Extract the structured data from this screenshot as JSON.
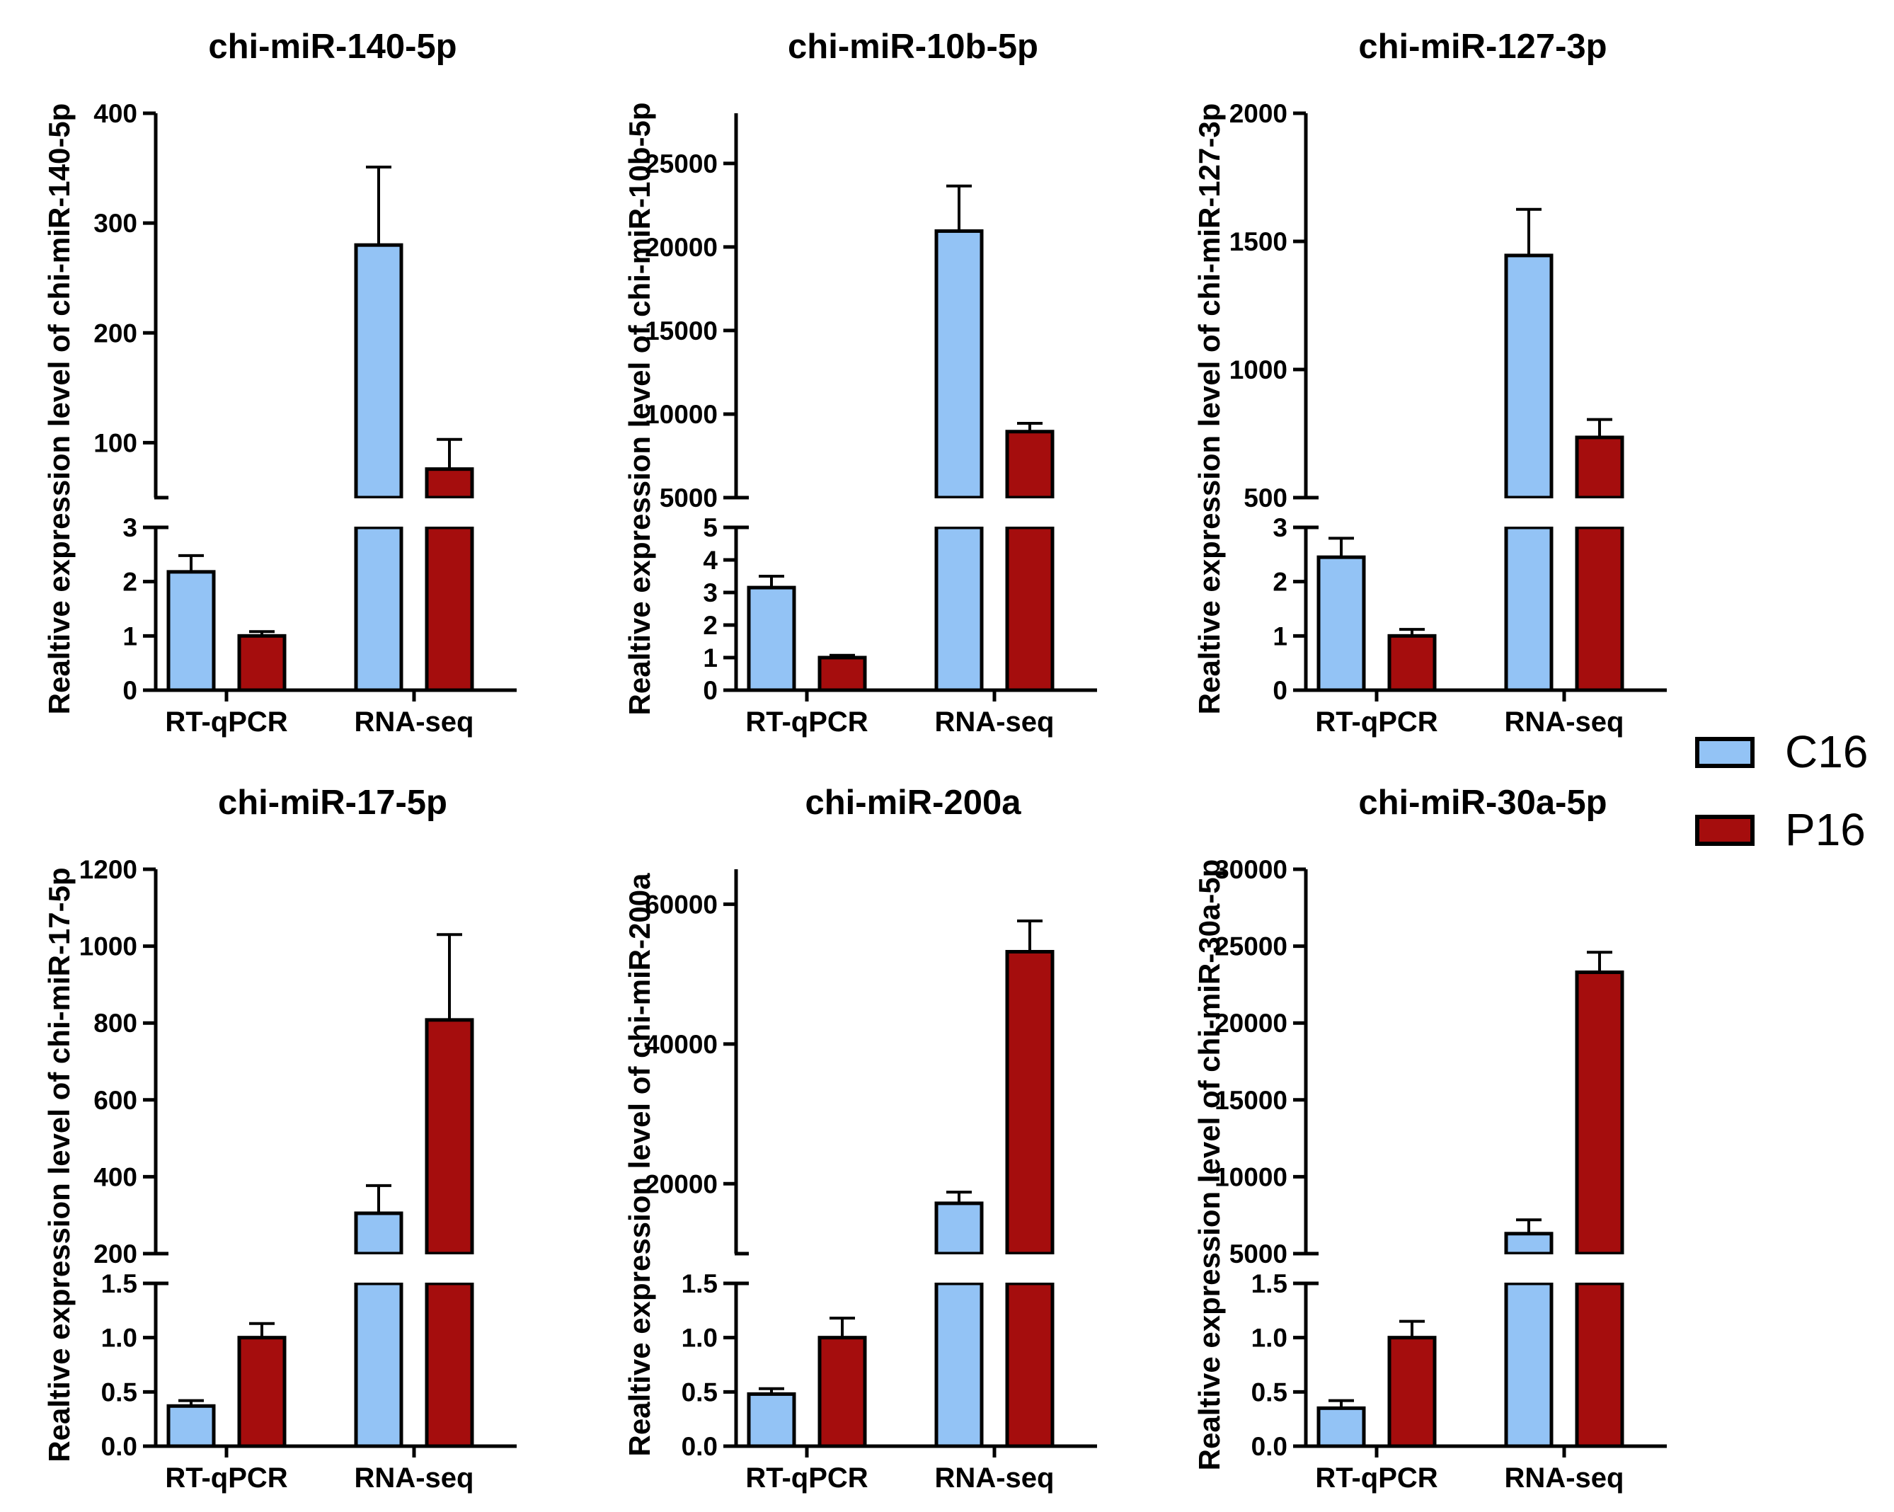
{
  "colors": {
    "c16": "#93c3f5",
    "p16": "#a50d0d",
    "stroke": "#000000"
  },
  "legend": [
    {
      "key": "c16",
      "label": "C16"
    },
    {
      "key": "p16",
      "label": "P16"
    }
  ],
  "chart_data": [
    {
      "type": "bar",
      "title": "chi-miR-140-5p",
      "ylabel": "Realtive expression level of chi-miR-140-5p",
      "categories": [
        "RT-qPCR",
        "RNA-seq"
      ],
      "series": [
        {
          "name": "C16",
          "values": [
            2.18,
            280
          ],
          "errors": [
            0.3,
            71
          ]
        },
        {
          "name": "P16",
          "values": [
            1.0,
            76
          ],
          "errors": [
            0.08,
            27
          ]
        }
      ],
      "lower_axis": {
        "range": [
          0,
          3
        ],
        "ticks": [
          0,
          1,
          2,
          3
        ]
      },
      "upper_axis": {
        "range": [
          50,
          400
        ],
        "ticks": [
          100,
          200,
          300,
          400
        ],
        "tick_labels": [
          "100",
          "200",
          "300",
          "400"
        ]
      }
    },
    {
      "type": "bar",
      "title": "chi-miR-10b-5p",
      "ylabel": "Realtive expression level of chi-miR-10b-5p",
      "categories": [
        "RT-qPCR",
        "RNA-seq"
      ],
      "series": [
        {
          "name": "C16",
          "values": [
            3.15,
            20950
          ],
          "errors": [
            0.35,
            2700
          ]
        },
        {
          "name": "P16",
          "values": [
            1.0,
            8950
          ],
          "errors": [
            0.07,
            500
          ]
        }
      ],
      "lower_axis": {
        "range": [
          0,
          5
        ],
        "ticks": [
          0,
          1,
          2,
          3,
          4,
          5
        ]
      },
      "upper_axis": {
        "range": [
          5000,
          28000
        ],
        "ticks": [
          5000,
          10000,
          15000,
          20000,
          25000
        ],
        "tick_labels": [
          "5000",
          "10000",
          "15000",
          "20000",
          "25000"
        ]
      }
    },
    {
      "type": "bar",
      "title": "chi-miR-127-3p",
      "ylabel": "Realtive expression level of chi-miR-127-3p",
      "categories": [
        "RT-qPCR",
        "RNA-seq"
      ],
      "series": [
        {
          "name": "C16",
          "values": [
            2.45,
            1445
          ],
          "errors": [
            0.35,
            180
          ]
        },
        {
          "name": "P16",
          "values": [
            1.0,
            735
          ],
          "errors": [
            0.12,
            70
          ]
        }
      ],
      "lower_axis": {
        "range": [
          0,
          3
        ],
        "ticks": [
          0,
          1,
          2,
          3
        ]
      },
      "upper_axis": {
        "range": [
          500,
          2000
        ],
        "ticks": [
          500,
          1000,
          1500,
          2000
        ],
        "tick_labels": [
          "500",
          "1000",
          "1500",
          "2000"
        ]
      }
    },
    {
      "type": "bar",
      "title": "chi-miR-17-5p",
      "ylabel": "Realtive expression level of chi-miR-17-5p",
      "categories": [
        "RT-qPCR",
        "RNA-seq"
      ],
      "series": [
        {
          "name": "C16",
          "values": [
            0.37,
            305
          ],
          "errors": [
            0.05,
            72
          ]
        },
        {
          "name": "P16",
          "values": [
            1.0,
            808
          ],
          "errors": [
            0.13,
            222
          ]
        }
      ],
      "lower_axis": {
        "range": [
          0,
          1.5
        ],
        "ticks": [
          0,
          0.5,
          1,
          1.5
        ],
        "tick_labels": [
          "0.0",
          "0.5",
          "1.0",
          "1.5"
        ]
      },
      "upper_axis": {
        "range": [
          200,
          1200
        ],
        "ticks": [
          200,
          400,
          600,
          800,
          1000,
          1200
        ],
        "tick_labels": [
          "200",
          "400",
          "600",
          "800",
          "1000",
          "1200"
        ]
      }
    },
    {
      "type": "bar",
      "title": "chi-miR-200a",
      "ylabel": "Realtive expression level of chi-miR-200a",
      "categories": [
        "RT-qPCR",
        "RNA-seq"
      ],
      "series": [
        {
          "name": "C16",
          "values": [
            0.48,
            17200
          ],
          "errors": [
            0.05,
            1600
          ]
        },
        {
          "name": "P16",
          "values": [
            1.0,
            53200
          ],
          "errors": [
            0.18,
            4400
          ]
        }
      ],
      "lower_axis": {
        "range": [
          0,
          1.5
        ],
        "ticks": [
          0,
          0.5,
          1,
          1.5
        ],
        "tick_labels": [
          "0.0",
          "0.5",
          "1.0",
          "1.5"
        ]
      },
      "upper_axis": {
        "range": [
          10000,
          65000
        ],
        "ticks": [
          20000,
          40000,
          60000
        ],
        "tick_labels": [
          "20000",
          "40000",
          "60000"
        ]
      }
    },
    {
      "type": "bar",
      "title": "chi-miR-30a-5p",
      "ylabel": "Realtive expression level of chi-miR-30a-5p",
      "categories": [
        "RT-qPCR",
        "RNA-seq"
      ],
      "series": [
        {
          "name": "C16",
          "values": [
            0.35,
            6300
          ],
          "errors": [
            0.07,
            900
          ]
        },
        {
          "name": "P16",
          "values": [
            1.0,
            23300
          ],
          "errors": [
            0.15,
            1300
          ]
        }
      ],
      "lower_axis": {
        "range": [
          0,
          1.5
        ],
        "ticks": [
          0,
          0.5,
          1,
          1.5
        ],
        "tick_labels": [
          "0.0",
          "0.5",
          "1.0",
          "1.5"
        ]
      },
      "upper_axis": {
        "range": [
          5000,
          30000
        ],
        "ticks": [
          5000,
          10000,
          15000,
          20000,
          25000,
          30000
        ],
        "tick_labels": [
          "5000",
          "10000",
          "15000",
          "20000",
          "25000",
          "30000"
        ]
      }
    }
  ]
}
